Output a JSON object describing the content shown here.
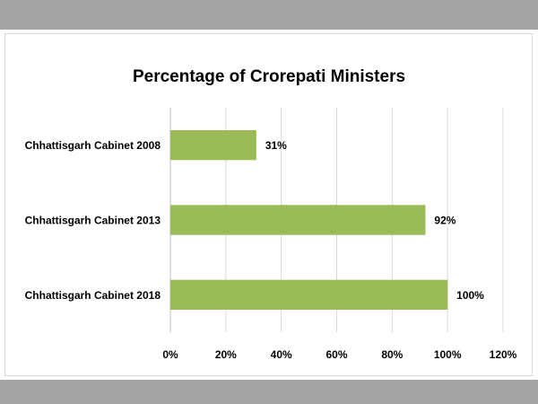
{
  "chart_data": {
    "type": "bar",
    "orientation": "horizontal",
    "title": "Percentage of Crorepati Ministers",
    "categories": [
      "Chhattisgarh Cabinet 2008",
      "Chhattisgarh Cabinet 2013",
      "Chhattisgarh Cabinet 2018"
    ],
    "values": [
      31,
      92,
      100
    ],
    "data_labels": [
      "31%",
      "92%",
      "100%"
    ],
    "xlim": [
      0,
      120
    ],
    "x_ticks": [
      0,
      20,
      40,
      60,
      80,
      100,
      120
    ],
    "x_tick_labels": [
      "0%",
      "20%",
      "40%",
      "60%",
      "80%",
      "100%",
      "120%"
    ],
    "xlabel": "",
    "ylabel": "",
    "grid": "vertical",
    "legend": "none",
    "bar_color": "#9bbb59",
    "grid_color": "#d9d9d9"
  }
}
